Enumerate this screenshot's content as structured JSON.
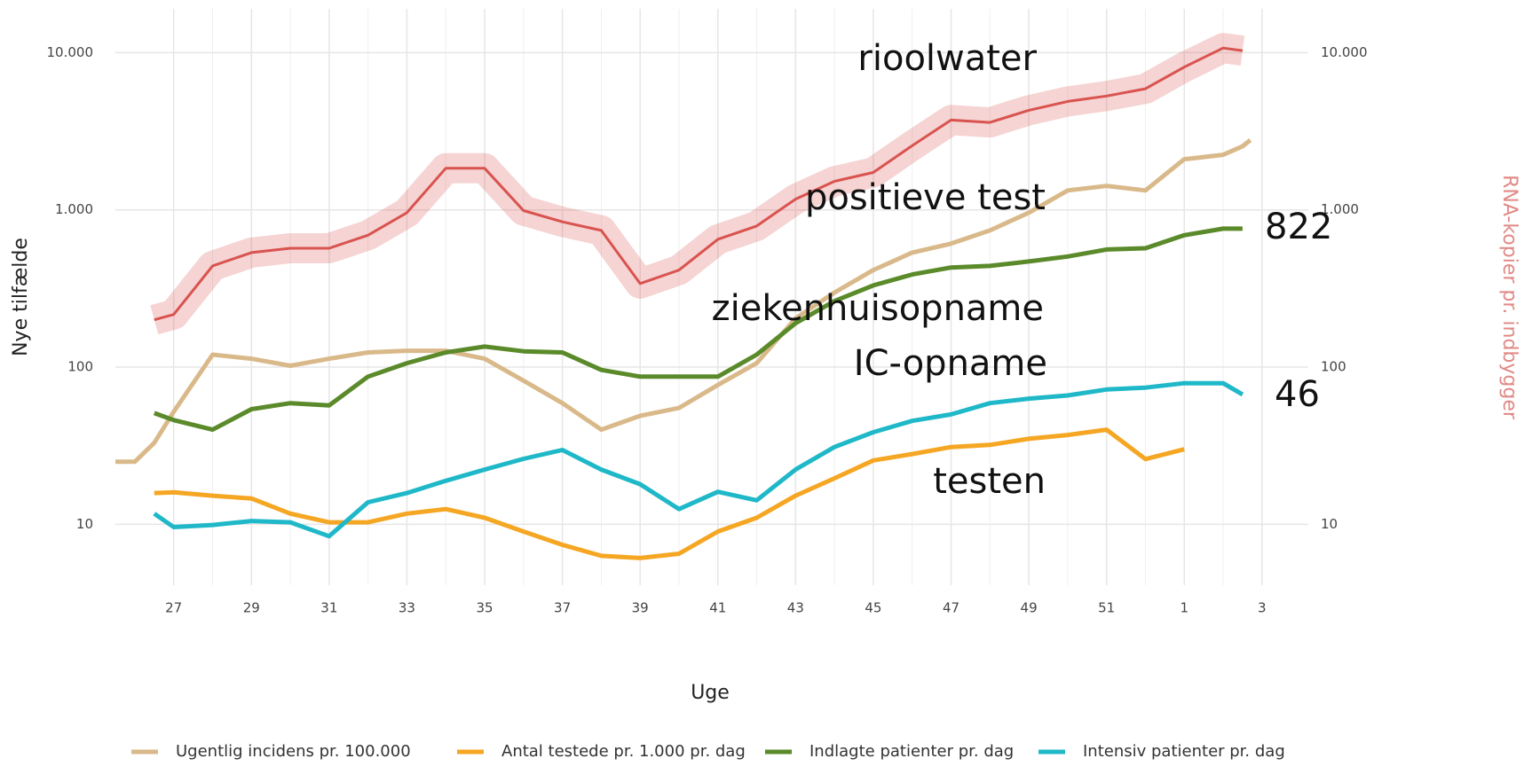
{
  "chart_data": {
    "type": "line",
    "log_y": true,
    "grid": true,
    "x_label": "Uge",
    "y_label": "Nye tilfælde",
    "y2_label": "RNA-kopier pr. indbygger",
    "y2_color": "#e08a86",
    "legend": "bottom",
    "xlim": [
      25.5,
      56.1
    ],
    "xticks": [
      27,
      29,
      31,
      33,
      35,
      37,
      39,
      41,
      43,
      45,
      47,
      49,
      51,
      {
        "value": 53,
        "label": "1"
      },
      {
        "value": 55,
        "label": "3"
      }
    ],
    "ylim": [
      4.1,
      19000
    ],
    "yticks": [
      10,
      100,
      {
        "value": 1000,
        "label": "1.000"
      },
      {
        "value": 10000,
        "label": "10.000"
      }
    ],
    "y2lim": [
      4.1,
      19000
    ],
    "y2ticks": [
      10,
      100,
      {
        "value": 1000,
        "label": "1.000"
      },
      {
        "value": 10000,
        "label": "10.000"
      }
    ],
    "x": [
      25.5,
      26,
      26.5,
      27,
      28,
      29,
      30,
      31,
      32,
      33,
      34,
      35,
      36,
      37,
      38,
      39,
      40,
      41,
      42,
      43,
      44,
      45,
      46,
      47,
      48,
      49,
      50,
      51,
      52,
      53,
      54,
      54.5,
      54.7
    ],
    "series": [
      {
        "name": "Ugentlig incidens pr. 100.000",
        "color": "#d9b98a",
        "values": [
          25,
          25,
          33,
          52,
          120,
          113,
          102,
          113,
          124,
          127,
          127,
          113,
          82,
          59,
          40,
          49,
          55,
          77,
          106,
          204,
          298,
          414,
          535,
          610,
          740,
          960,
          1330,
          1420,
          1330,
          2100,
          2240,
          2540,
          2780
        ]
      },
      {
        "name": "Antal testede pr. 1.000 pr. dag",
        "color": "#f5a623",
        "values": [
          null,
          null,
          15.8,
          16,
          15.2,
          14.6,
          11.7,
          10.3,
          10.3,
          11.7,
          12.5,
          11,
          9,
          7.4,
          6.3,
          6.1,
          6.5,
          9,
          11,
          15.2,
          19.6,
          25.5,
          28,
          31,
          32,
          35,
          37,
          40,
          26,
          30,
          null,
          null,
          null
        ]
      },
      {
        "name": "Indlagte patienter pr. dag",
        "color": "#5a8a2a",
        "values": [
          null,
          null,
          51,
          46,
          40,
          54,
          59,
          57,
          87,
          106,
          124,
          135,
          126,
          124,
          96,
          87,
          87,
          87,
          120,
          190,
          263,
          331,
          388,
          430,
          440,
          470,
          505,
          560,
          570,
          690,
          760,
          760,
          null
        ]
      },
      {
        "name": "Intensiv patienter pr. dag",
        "color": "#1fb8c8",
        "values": [
          null,
          null,
          11.7,
          9.6,
          9.9,
          10.5,
          10.3,
          8.4,
          13.8,
          15.8,
          18.9,
          22.3,
          26.1,
          29.7,
          22.3,
          18,
          12.5,
          16.1,
          14.2,
          22.3,
          31,
          38.5,
          45.5,
          50,
          59,
          63,
          66,
          72,
          74,
          79,
          79,
          67,
          null
        ]
      },
      {
        "axis": "y2",
        "color": "#d9534f",
        "values": [
          null,
          null,
          200,
          216,
          440,
          535,
          570,
          570,
          690,
          960,
          1840,
          1840,
          990,
          840,
          740,
          340,
          414,
          650,
          790,
          1170,
          1520,
          1730,
          2560,
          3730,
          3600,
          4300,
          4900,
          5300,
          5900,
          8100,
          10700,
          10300,
          null
        ]
      }
    ],
    "annotations": [
      "rioolwater",
      "positieve test",
      "ziekenhuisopname",
      "IC-opname",
      "testen",
      "822",
      "46"
    ]
  }
}
